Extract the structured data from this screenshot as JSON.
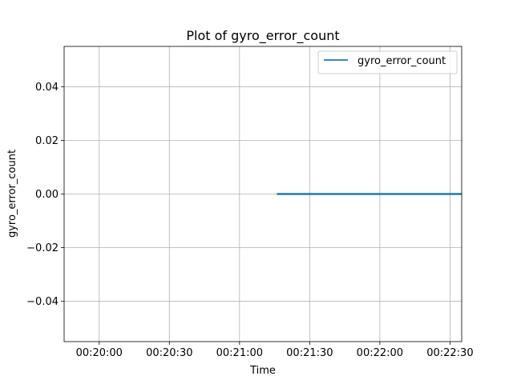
{
  "chart_data": {
    "type": "line",
    "title": "Plot of gyro_error_count",
    "xlabel": "Time",
    "ylabel": "gyro_error_count",
    "x_axis_kind": "time",
    "xlim": [
      "00:19:45",
      "00:22:35"
    ],
    "ylim": [
      -0.055,
      0.055
    ],
    "x_ticks": [
      "00:20:00",
      "00:20:30",
      "00:21:00",
      "00:21:30",
      "00:22:00",
      "00:22:30"
    ],
    "y_ticks": [
      0.04,
      0.02,
      0.0,
      -0.02,
      -0.04
    ],
    "y_tick_labels": [
      "0.04",
      "0.02",
      "0.00",
      "−0.02",
      "−0.04"
    ],
    "grid": true,
    "legend": {
      "position": "top-right",
      "entries": [
        "gyro_error_count"
      ]
    },
    "series": [
      {
        "name": "gyro_error_count",
        "color": "#1f77b4",
        "x": [
          "00:21:16",
          "00:22:35"
        ],
        "y": [
          0,
          0
        ]
      }
    ]
  }
}
